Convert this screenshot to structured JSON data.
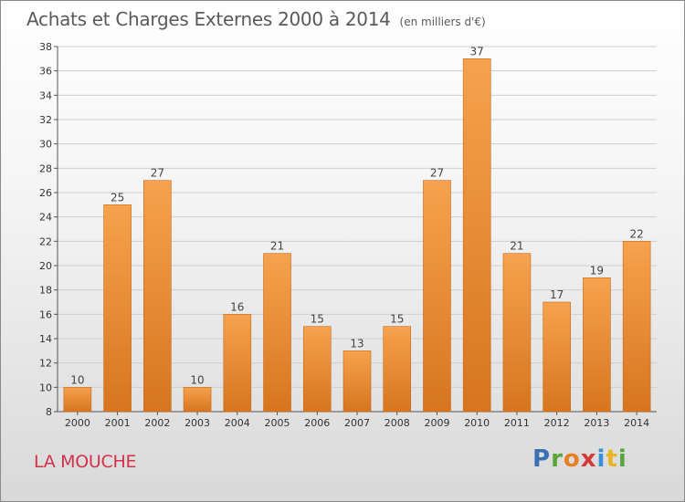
{
  "header": {
    "title": "Achats et Charges Externes 2000 à 2014",
    "unit": "(en milliers d'€)"
  },
  "footer": {
    "commune": "LA MOUCHE",
    "logo": [
      {
        "ch": "P",
        "color": "#3a6fb5"
      },
      {
        "ch": "r",
        "color": "#5aa63a"
      },
      {
        "ch": "o",
        "color": "#e87f22"
      },
      {
        "ch": "x",
        "color": "#d43a3a"
      },
      {
        "ch": "i",
        "color": "#3a8fd4"
      },
      {
        "ch": "t",
        "color": "#e8b422"
      },
      {
        "ch": "i",
        "color": "#5aa63a"
      }
    ]
  },
  "colors": {
    "bar_top": "#f6a24e",
    "bar_bottom": "#d7751f",
    "bar_edge": "#c46a1c",
    "grid": "#cfcfcf"
  },
  "chart_data": {
    "type": "bar",
    "title": "Achats et Charges Externes 2000 à 2014",
    "categories": [
      "2000",
      "2001",
      "2002",
      "2003",
      "2004",
      "2005",
      "2006",
      "2007",
      "2008",
      "2009",
      "2010",
      "2011",
      "2012",
      "2013",
      "2014"
    ],
    "values": [
      10,
      25,
      27,
      10,
      16,
      21,
      15,
      13,
      15,
      27,
      37,
      21,
      17,
      19,
      22
    ],
    "ylim": [
      8,
      38
    ],
    "yticks": [
      8,
      10,
      12,
      14,
      16,
      18,
      20,
      22,
      24,
      26,
      28,
      30,
      32,
      34,
      36,
      38
    ],
    "grid": true,
    "data_labels": true
  }
}
